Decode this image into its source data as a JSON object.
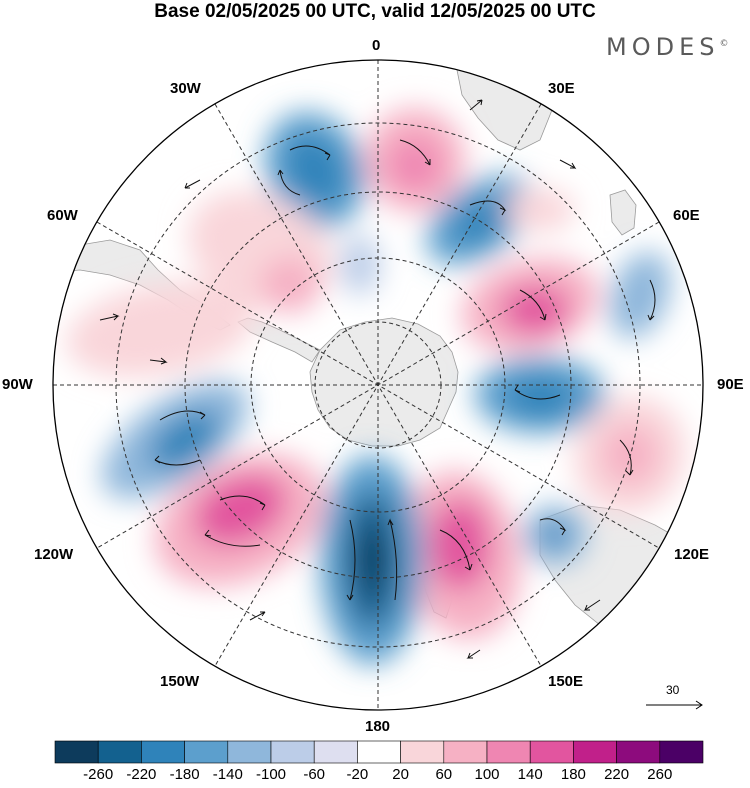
{
  "header": {
    "title": "Base 02/05/2025 00 UTC, valid 12/05/2025 00 UTC",
    "brand": "MODES",
    "brand_mark": "©"
  },
  "map": {
    "projection": "south-polar-stereographic",
    "longitude_labels": {
      "top": "0",
      "top_right": "30E",
      "right_upper": "60E",
      "right": "90E",
      "right_lower": "120E",
      "bottom_right": "150E",
      "bottom": "180",
      "bottom_left": "150W",
      "left_lower": "120W",
      "left": "90W",
      "left_upper": "60W",
      "top_left": "30W"
    },
    "land_color": "#ebebeb",
    "gridlines": "dashed"
  },
  "reference_vector": {
    "label": "30"
  },
  "colorbar": {
    "tick_labels": [
      "-260",
      "-220",
      "-180",
      "-140",
      "-100",
      "-60",
      "-20",
      "20",
      "60",
      "100",
      "140",
      "180",
      "220",
      "260"
    ],
    "colors": [
      "#0d3b5c",
      "#13618f",
      "#2f83ba",
      "#5c9fcd",
      "#8fb7db",
      "#bccde8",
      "#dedff0",
      "#ffffff",
      "#f9d6da",
      "#f6b1c4",
      "#ef86b2",
      "#e2559f",
      "#c1208a",
      "#8d0b7d",
      "#4b0066"
    ]
  }
}
